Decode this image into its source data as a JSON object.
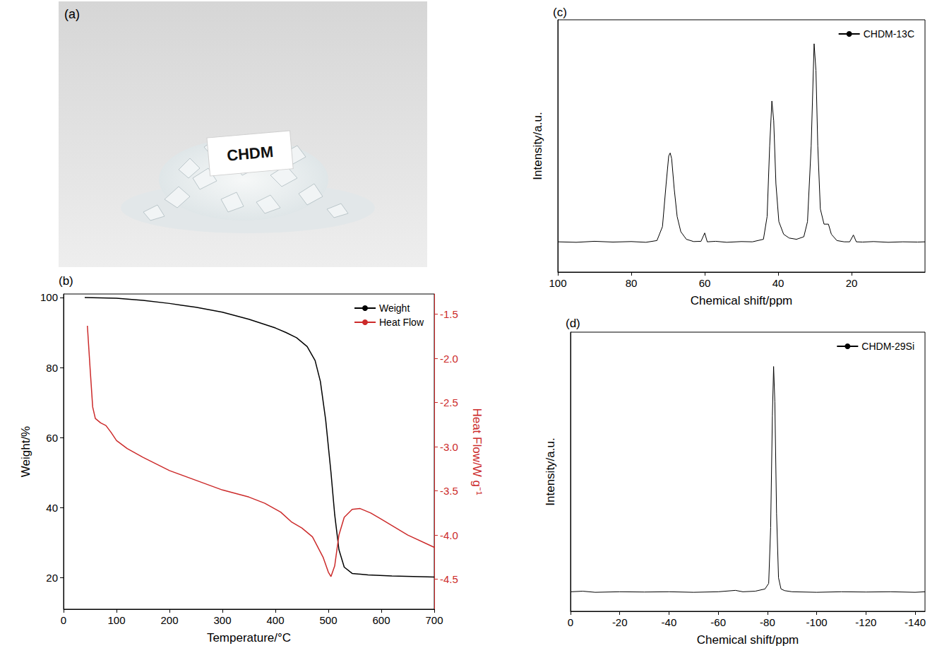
{
  "photo": {
    "panel": "(a)",
    "label": "CHDM"
  },
  "chart_data": [
    {
      "type": "line",
      "title": "(b)",
      "x_label": "Temperature/°C",
      "y_label": "Weight/%",
      "y2_label": "Heat Flow/W g⁻¹",
      "xlim": [
        0,
        700
      ],
      "xticks": [
        0,
        100,
        200,
        300,
        400,
        500,
        600,
        700
      ],
      "ylim": [
        11,
        101
      ],
      "yticks": [
        20,
        40,
        60,
        80,
        100
      ],
      "y2lim": [
        -4.84,
        -1.27
      ],
      "y2ticks": [
        -1.5,
        {
          "value": -2,
          "label": "-2.0"
        },
        -2.5,
        {
          "value": -3,
          "label": "-3.0"
        },
        -3.5,
        {
          "value": -4,
          "label": "-4.0"
        },
        -4.5
      ],
      "grid": false,
      "legend": "top-right",
      "series": [
        {
          "name": "Weight",
          "color": "#000000",
          "x": [
            40,
            100,
            150,
            200,
            250,
            300,
            350,
            400,
            420,
            440,
            460,
            475,
            485,
            495,
            505,
            512,
            520,
            530,
            545,
            575,
            620,
            700
          ],
          "values": [
            100,
            99.8,
            99.2,
            98.3,
            97.2,
            95.8,
            93.8,
            91.3,
            90,
            88.5,
            86,
            82,
            76,
            65,
            50,
            38,
            28,
            23,
            21.2,
            20.8,
            20.5,
            20.2
          ]
        },
        {
          "name": "Heat Flow",
          "color": "#cc2a2a",
          "axis": "y2",
          "x": [
            45,
            50,
            55,
            60,
            70,
            80,
            90,
            100,
            120,
            150,
            200,
            250,
            300,
            350,
            380,
            410,
            430,
            450,
            470,
            490,
            500,
            505,
            512,
            520,
            530,
            545,
            560,
            580,
            600,
            650,
            700
          ],
          "values": [
            -1.63,
            -2.1,
            -2.55,
            -2.68,
            -2.73,
            -2.76,
            -2.84,
            -2.93,
            -3.02,
            -3.12,
            -3.27,
            -3.38,
            -3.49,
            -3.57,
            -3.64,
            -3.74,
            -3.85,
            -3.92,
            -4.02,
            -4.25,
            -4.42,
            -4.47,
            -4.35,
            -4.0,
            -3.8,
            -3.71,
            -3.7,
            -3.75,
            -3.82,
            -4.0,
            -4.14
          ]
        }
      ]
    },
    {
      "type": "line",
      "title": "(c)",
      "x_label": "Chemical shift/ppm",
      "y_label": "Intensity/a.u.",
      "xlim": [
        100,
        0
      ],
      "xticks": [
        100,
        80,
        60,
        40,
        20
      ],
      "ylim": [
        0,
        1
      ],
      "grid": false,
      "legend": "top-right",
      "tick_labels": "x",
      "series": [
        {
          "name": "CHDM-13C",
          "color": "#000000",
          "x": [
            100,
            95,
            90,
            85,
            80,
            76,
            73,
            71.5,
            70.5,
            69.8,
            69.4,
            69,
            68.3,
            67.5,
            66.5,
            65,
            63,
            61,
            60,
            59.3,
            57,
            54,
            50,
            47,
            44,
            43,
            42.3,
            41.7,
            41.2,
            40.6,
            39.8,
            38.5,
            37,
            35,
            33,
            32,
            31,
            30.2,
            29.7,
            29.2,
            28.5,
            27.5,
            26.3,
            25.5,
            24,
            22,
            20.5,
            19.5,
            18.7,
            17,
            14,
            10,
            6,
            2,
            0
          ],
          "values": [
            0.12,
            0.118,
            0.122,
            0.119,
            0.121,
            0.118,
            0.125,
            0.18,
            0.35,
            0.46,
            0.472,
            0.45,
            0.33,
            0.22,
            0.16,
            0.13,
            0.121,
            0.122,
            0.155,
            0.12,
            0.122,
            0.118,
            0.121,
            0.12,
            0.13,
            0.22,
            0.5,
            0.678,
            0.6,
            0.35,
            0.2,
            0.15,
            0.135,
            0.13,
            0.14,
            0.2,
            0.5,
            0.905,
            0.8,
            0.5,
            0.25,
            0.19,
            0.19,
            0.15,
            0.125,
            0.12,
            0.12,
            0.147,
            0.12,
            0.119,
            0.121,
            0.118,
            0.12,
            0.119,
            0.12
          ]
        }
      ]
    },
    {
      "type": "line",
      "title": "(d)",
      "x_label": "Chemical shift/ppm",
      "y_label": "Intensity/a.u.",
      "xlim": [
        0,
        -144
      ],
      "xticks": [
        0,
        -20,
        -40,
        -60,
        -80,
        -100,
        -120,
        -140
      ],
      "ylim": [
        0,
        1
      ],
      "grid": false,
      "legend": "top-right",
      "tick_labels": "x",
      "series": [
        {
          "name": "CHDM-29Si",
          "color": "#000000",
          "x": [
            0,
            -5,
            -10,
            -20,
            -30,
            -40,
            -50,
            -60,
            -67,
            -70,
            -75,
            -79,
            -80.5,
            -81.3,
            -82,
            -82.5,
            -83,
            -83.7,
            -84.5,
            -85.5,
            -87,
            -90,
            -100,
            -110,
            -120,
            -130,
            -140,
            -144
          ],
          "values": [
            0.07,
            0.072,
            0.068,
            0.07,
            0.069,
            0.07,
            0.068,
            0.07,
            0.075,
            0.07,
            0.072,
            0.08,
            0.1,
            0.3,
            0.7,
            0.877,
            0.75,
            0.35,
            0.12,
            0.08,
            0.074,
            0.07,
            0.068,
            0.07,
            0.069,
            0.07,
            0.068,
            0.07
          ]
        }
      ]
    }
  ]
}
